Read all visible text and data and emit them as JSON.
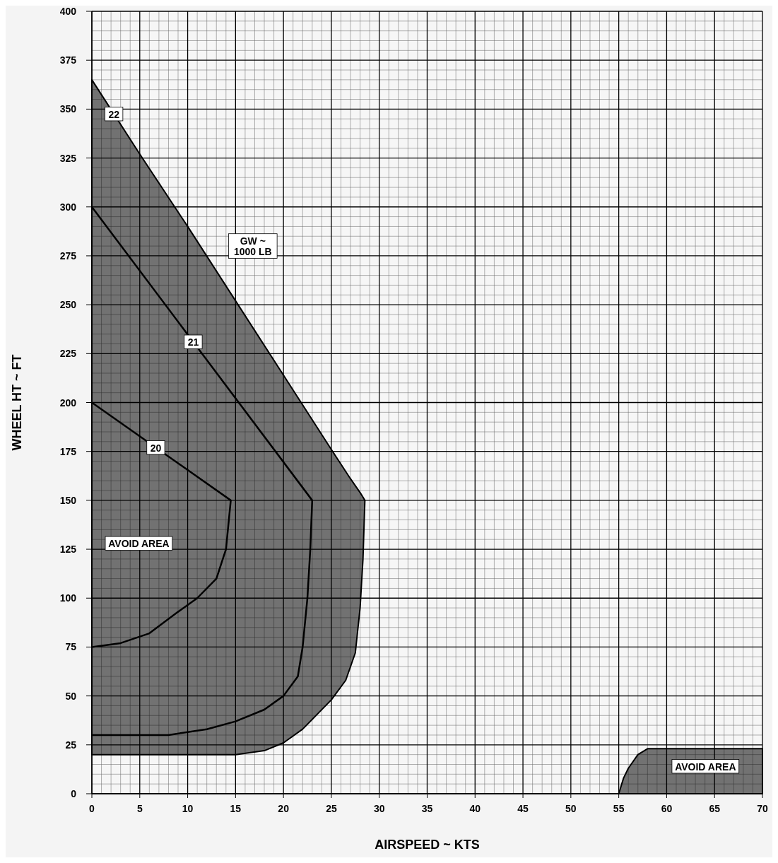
{
  "chart_data": {
    "type": "area",
    "xlabel": "AIRSPEED ~ KTS",
    "ylabel": "WHEEL HT ~ FT",
    "xlim": [
      0,
      70
    ],
    "ylim": [
      0,
      400
    ],
    "xticks": [
      0,
      5,
      10,
      15,
      20,
      25,
      30,
      35,
      40,
      45,
      50,
      55,
      60,
      65,
      70
    ],
    "yticks": [
      0,
      25,
      50,
      75,
      100,
      125,
      150,
      175,
      200,
      225,
      250,
      275,
      300,
      325,
      350,
      375,
      400
    ],
    "grid": true,
    "series": [
      {
        "name": "22",
        "color": "#5a5a5a",
        "x": [
          0,
          5,
          10,
          15,
          20,
          25,
          27,
          28,
          28.5,
          28.3,
          28,
          27.5,
          26.5,
          25,
          22,
          20,
          18,
          15,
          0
        ],
        "values": [
          365,
          327,
          290,
          252,
          214,
          176,
          161,
          154,
          150,
          120,
          95,
          72,
          58,
          48,
          33,
          26,
          22,
          20,
          20
        ]
      },
      {
        "color": "#5a5a5a",
        "x": [
          55,
          55.5,
          56,
          57,
          58,
          70,
          70
        ],
        "values": [
          0,
          8,
          13,
          20,
          23,
          23,
          0
        ]
      },
      {
        "name": "21",
        "type": "line",
        "color": "#000000",
        "x": [
          0,
          23,
          22.8,
          22.5,
          22,
          21.5,
          20,
          18,
          15,
          12,
          8,
          0
        ],
        "values": [
          300,
          150,
          125,
          100,
          75,
          60,
          50,
          43,
          37,
          33,
          30,
          30
        ]
      },
      {
        "name": "20",
        "type": "line",
        "color": "#000000",
        "x": [
          0,
          14.5,
          14,
          13,
          11,
          9,
          6,
          3,
          0
        ],
        "values": [
          200,
          150,
          125,
          110,
          100,
          93,
          82,
          77,
          75
        ]
      }
    ],
    "annotations": [
      "GW ~\n1000 LB",
      "AVOID AREA",
      "AVOID AREA"
    ]
  }
}
